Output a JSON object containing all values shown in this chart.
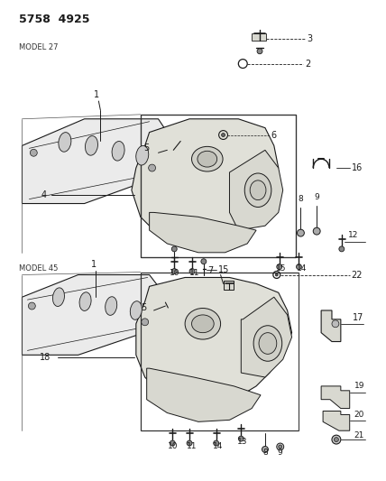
{
  "title": "5758  4925",
  "model1": "MODEL 27",
  "model2": "MODEL 45",
  "bg": "#f5f5f0",
  "lc": "#1a1a1a",
  "tc": "#1a1a1a",
  "figsize": [
    4.28,
    5.33
  ],
  "dpi": 100
}
